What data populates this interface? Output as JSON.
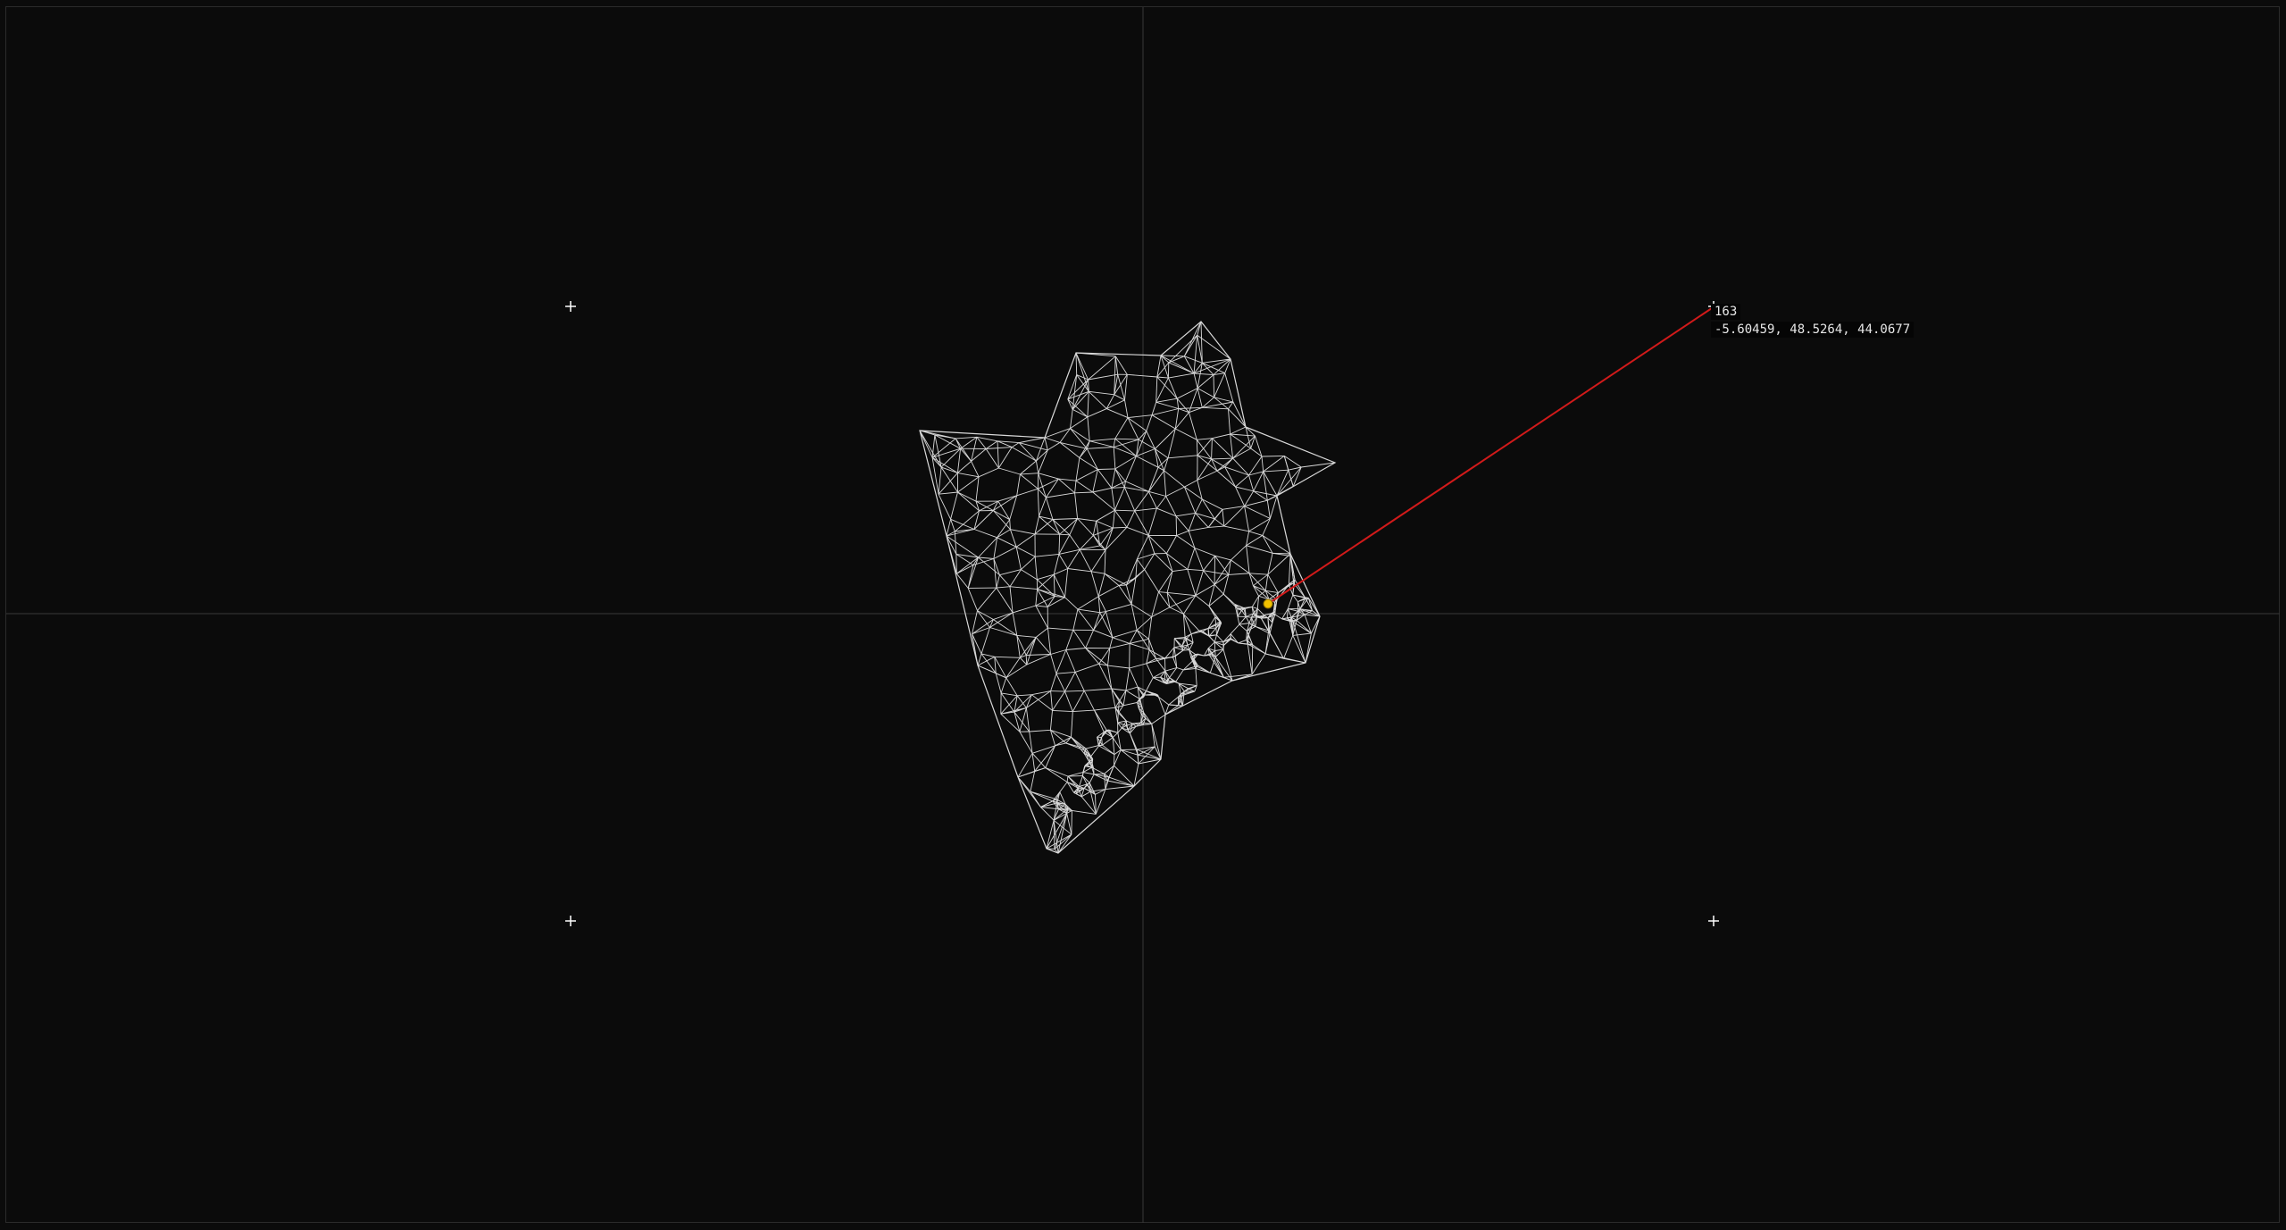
{
  "viewer": {
    "selected_vertex": {
      "index": "163",
      "coordinates": "-5.60459, 48.5264, 44.0677"
    },
    "colors": {
      "background": "#0b0b0b",
      "frame": "#2b2b2b",
      "axis": "#3a3a3a",
      "mesh": "#d9d9d9",
      "marker": "#ffffff",
      "probe_line": "#d11a1a",
      "selected_point": "#f2c200"
    },
    "icons": {
      "corner_marker": "crosshair-plus-icon"
    }
  }
}
